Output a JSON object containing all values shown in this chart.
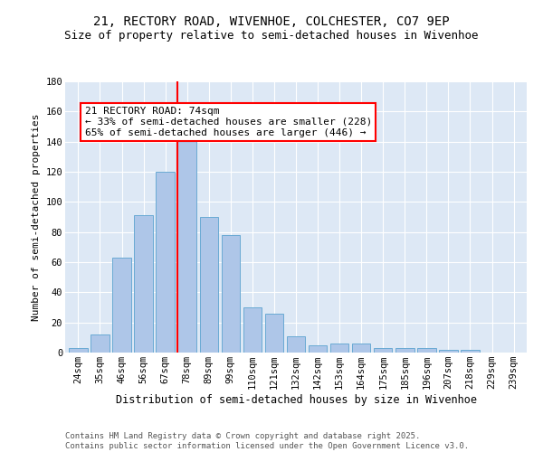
{
  "title1": "21, RECTORY ROAD, WIVENHOE, COLCHESTER, CO7 9EP",
  "title2": "Size of property relative to semi-detached houses in Wivenhoe",
  "xlabel": "Distribution of semi-detached houses by size in Wivenhoe",
  "ylabel": "Number of semi-detached properties",
  "categories": [
    "24sqm",
    "35sqm",
    "46sqm",
    "56sqm",
    "67sqm",
    "78sqm",
    "89sqm",
    "99sqm",
    "110sqm",
    "121sqm",
    "132sqm",
    "142sqm",
    "153sqm",
    "164sqm",
    "175sqm",
    "185sqm",
    "196sqm",
    "207sqm",
    "218sqm",
    "229sqm",
    "239sqm"
  ],
  "values": [
    3,
    12,
    63,
    91,
    120,
    141,
    90,
    78,
    30,
    26,
    11,
    5,
    6,
    6,
    3,
    3,
    3,
    2,
    2,
    0,
    0
  ],
  "bar_color": "#aec6e8",
  "bar_edge_color": "#6aaad4",
  "vline_color": "red",
  "annotation_box_text": "21 RECTORY ROAD: 74sqm\n← 33% of semi-detached houses are smaller (228)\n65% of semi-detached houses are larger (446) →",
  "box_edge_color": "red",
  "box_face_color": "white",
  "ylim": [
    0,
    180
  ],
  "yticks": [
    0,
    20,
    40,
    60,
    80,
    100,
    120,
    140,
    160,
    180
  ],
  "background_color": "#dde8f5",
  "footer_line1": "Contains HM Land Registry data © Crown copyright and database right 2025.",
  "footer_line2": "Contains public sector information licensed under the Open Government Licence v3.0.",
  "title1_fontsize": 10,
  "title2_fontsize": 9,
  "xlabel_fontsize": 8.5,
  "ylabel_fontsize": 8,
  "tick_fontsize": 7.5,
  "annotation_fontsize": 8,
  "footer_fontsize": 6.5
}
